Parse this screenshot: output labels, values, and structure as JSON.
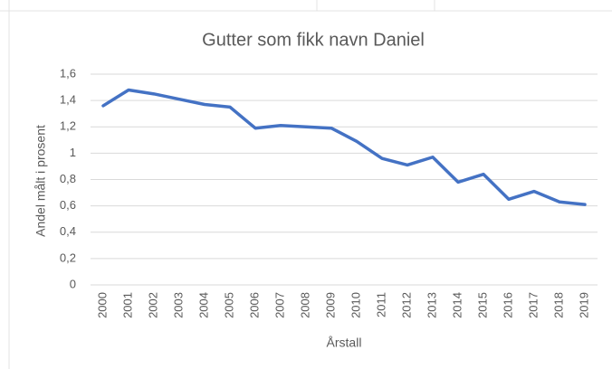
{
  "chart_data": {
    "type": "line",
    "title": "Gutter som fikk navn Daniel",
    "x_label": "Årstall",
    "y_label": "Andel målt i prosent",
    "categories": [
      "2000",
      "2001",
      "2002",
      "2003",
      "2004",
      "2005",
      "2006",
      "2007",
      "2008",
      "2009",
      "2010",
      "2011",
      "2012",
      "2013",
      "2014",
      "2015",
      "2016",
      "2017",
      "2018",
      "2019"
    ],
    "series": [
      {
        "name": "Daniel",
        "color": "#4472c4",
        "values": [
          1.36,
          1.48,
          1.45,
          1.41,
          1.37,
          1.35,
          1.19,
          1.21,
          1.2,
          1.19,
          1.09,
          0.96,
          0.91,
          0.97,
          0.78,
          0.84,
          0.65,
          0.71,
          0.63,
          0.61
        ]
      }
    ],
    "ylim": [
      0,
      1.6
    ],
    "yticks": [
      0,
      {
        "value": 0.2,
        "label": "0,2"
      },
      {
        "value": 0.4,
        "label": "0,4"
      },
      {
        "value": 0.6,
        "label": "0,6"
      },
      {
        "value": 0.8,
        "label": "0,8"
      },
      1,
      {
        "value": 1.2,
        "label": "1,2"
      },
      {
        "value": 1.4,
        "label": "1,4"
      },
      {
        "value": 1.6,
        "label": "1,6"
      }
    ],
    "grid": true
  }
}
